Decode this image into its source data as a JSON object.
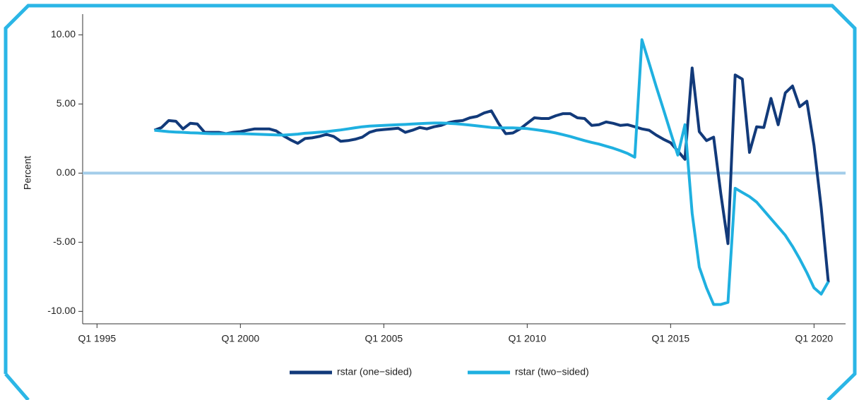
{
  "chart_data": {
    "type": "line",
    "y_label": "Percent",
    "x": [
      1997,
      1997.25,
      1997.5,
      1997.75,
      1998,
      1998.25,
      1998.5,
      1998.75,
      1999,
      1999.25,
      1999.5,
      1999.75,
      2000,
      2000.25,
      2000.5,
      2000.75,
      2001,
      2001.25,
      2001.5,
      2001.75,
      2002,
      2002.25,
      2002.5,
      2002.75,
      2003,
      2003.25,
      2003.5,
      2003.75,
      2004,
      2004.25,
      2004.5,
      2004.75,
      2005,
      2005.25,
      2005.5,
      2005.75,
      2006,
      2006.25,
      2006.5,
      2006.75,
      2007,
      2007.25,
      2007.5,
      2007.75,
      2008,
      2008.25,
      2008.5,
      2008.75,
      2009,
      2009.25,
      2009.5,
      2009.75,
      2010,
      2010.25,
      2010.5,
      2010.75,
      2011,
      2011.25,
      2011.5,
      2011.75,
      2012,
      2012.25,
      2012.5,
      2012.75,
      2013,
      2013.25,
      2013.5,
      2013.75,
      2014,
      2014.25,
      2014.5,
      2014.75,
      2015,
      2015.25,
      2015.5,
      2015.75,
      2016,
      2016.25,
      2016.5,
      2016.75,
      2017,
      2017.25,
      2017.5,
      2017.75,
      2018,
      2018.25,
      2018.5,
      2018.75,
      2019,
      2019.25,
      2019.5,
      2019.75,
      2020,
      2020.25,
      2020.5
    ],
    "series": [
      {
        "name": "rstar (one−sided)",
        "color": "#123a7a",
        "values": [
          3.1,
          3.3,
          3.8,
          3.75,
          3.2,
          3.6,
          3.55,
          2.95,
          2.95,
          2.95,
          2.85,
          2.95,
          3.0,
          3.1,
          3.2,
          3.2,
          3.2,
          3.05,
          2.7,
          2.4,
          2.15,
          2.5,
          2.55,
          2.65,
          2.8,
          2.65,
          2.3,
          2.35,
          2.45,
          2.6,
          2.95,
          3.1,
          3.15,
          3.2,
          3.25,
          2.95,
          3.1,
          3.3,
          3.2,
          3.35,
          3.45,
          3.65,
          3.75,
          3.8,
          4.0,
          4.1,
          4.35,
          4.5,
          3.6,
          2.85,
          2.9,
          3.2,
          3.6,
          4.0,
          3.95,
          3.95,
          4.15,
          4.3,
          4.3,
          4.0,
          3.95,
          3.45,
          3.5,
          3.7,
          3.6,
          3.45,
          3.5,
          3.35,
          3.2,
          3.1,
          2.75,
          2.45,
          2.2,
          1.6,
          1.0,
          7.6,
          3.0,
          2.35,
          2.6,
          -1.5,
          -5.1,
          7.1,
          6.8,
          1.5,
          3.35,
          3.3,
          5.4,
          3.5,
          5.8,
          6.3,
          4.8,
          5.2,
          2.0,
          -2.5,
          -7.9
        ]
      },
      {
        "name": "rstar (two−sided)",
        "color": "#1fb0e0",
        "values": [
          3.1,
          3.05,
          3.0,
          2.97,
          2.95,
          2.92,
          2.9,
          2.87,
          2.85,
          2.85,
          2.85,
          2.85,
          2.85,
          2.84,
          2.82,
          2.8,
          2.78,
          2.76,
          2.75,
          2.78,
          2.82,
          2.88,
          2.92,
          2.96,
          3.0,
          3.06,
          3.12,
          3.2,
          3.28,
          3.35,
          3.4,
          3.43,
          3.45,
          3.48,
          3.5,
          3.52,
          3.55,
          3.58,
          3.6,
          3.62,
          3.62,
          3.6,
          3.57,
          3.53,
          3.48,
          3.42,
          3.36,
          3.3,
          3.27,
          3.27,
          3.27,
          3.25,
          3.22,
          3.15,
          3.08,
          3.0,
          2.9,
          2.78,
          2.65,
          2.5,
          2.35,
          2.22,
          2.1,
          1.95,
          1.8,
          1.62,
          1.42,
          1.15,
          9.65,
          7.95,
          6.25,
          4.6,
          2.95,
          1.3,
          3.5,
          -2.9,
          -6.8,
          -8.3,
          -9.5,
          -9.5,
          -9.35,
          -1.1,
          -1.4,
          -1.7,
          -2.1,
          -2.7,
          -3.3,
          -3.9,
          -4.5,
          -5.3,
          -6.2,
          -7.2,
          -8.3,
          -8.75,
          -7.85
        ]
      }
    ],
    "xlim": [
      1994.5,
      2021.1
    ],
    "xticks": [
      {
        "value": 1995,
        "label": "Q1 1995"
      },
      {
        "value": 2000,
        "label": "Q1 2000"
      },
      {
        "value": 2005,
        "label": "Q1 2005"
      },
      {
        "value": 2010,
        "label": "Q1 2010"
      },
      {
        "value": 2015,
        "label": "Q1 2015"
      },
      {
        "value": 2020,
        "label": "Q1 2020"
      }
    ],
    "ylim": [
      -10.9,
      11.5
    ],
    "yticks": [
      {
        "value": -10,
        "label": "-10.00"
      },
      {
        "value": -5,
        "label": "-5.00"
      },
      {
        "value": 0,
        "label": "0.00"
      },
      {
        "value": 5,
        "label": "5.00"
      },
      {
        "value": 10,
        "label": "10.00"
      }
    ],
    "zero_line_color": "#a3cdea",
    "legend": "bottom"
  }
}
